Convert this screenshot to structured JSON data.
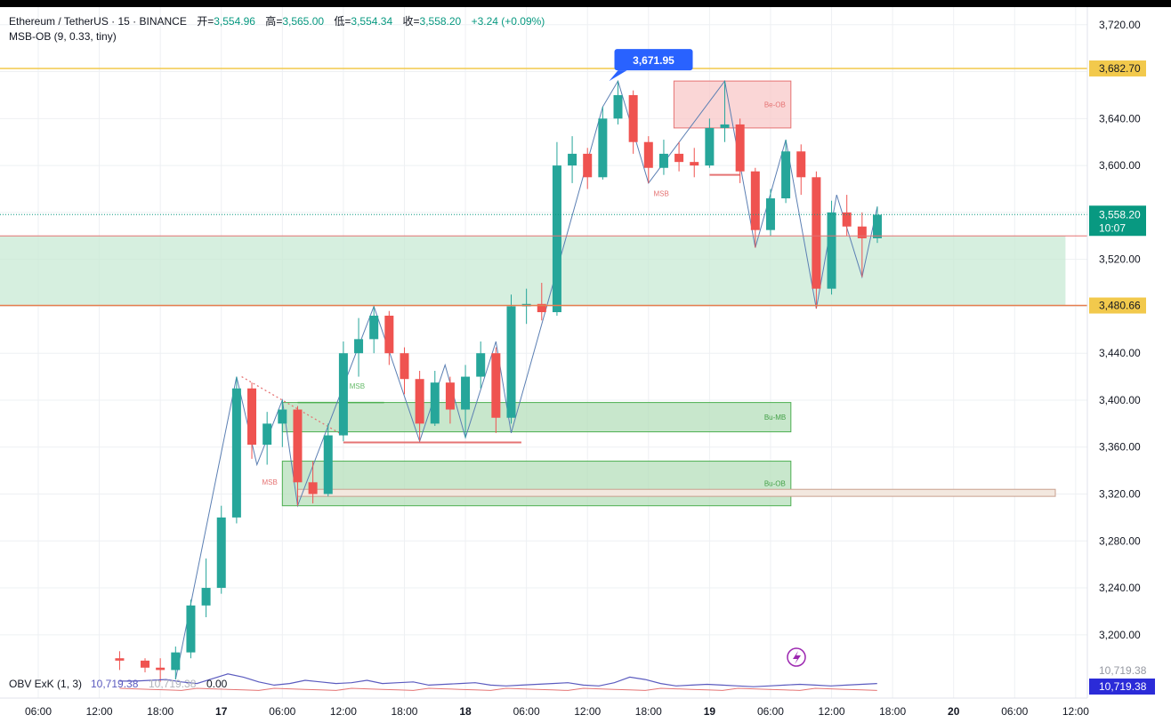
{
  "header": {
    "symbol": "Ethereum / TetherUS · 15 · BINANCE",
    "open_label": "开",
    "open": "3,554.96",
    "high_label": "高",
    "high": "3,565.00",
    "low_label": "低",
    "low": "3,554.34",
    "close_label": "收",
    "close": "3,558.20",
    "change": "+3.24 (+0.09%)",
    "indicator": "MSB-OB (9, 0.33, tiny)"
  },
  "obv": {
    "label": "OBV ExK (1, 3)",
    "v1": "10,719.38",
    "v2": "10,719.38",
    "v3": "0.00",
    "axis_value": "10,719.38",
    "axis_value_faded": "10,719.38"
  },
  "chart_data": {
    "type": "candlestick",
    "y_ticks": [
      3720,
      3680,
      3640,
      3600,
      3560,
      3520,
      3480,
      3440,
      3400,
      3360,
      3320,
      3280,
      3240,
      3200
    ],
    "y_tick_labels": [
      "3,720.00",
      "3,680.00",
      "3,640.00",
      "3,600.00",
      "3,560.00",
      "3,520.00",
      "3,480.00",
      "3,440.00",
      "3,400.00",
      "3,360.00",
      "3,320.00",
      "3,280.00",
      "3,240.00",
      "3,200.00"
    ],
    "x_tick_labels": [
      "06:00",
      "12:00",
      "18:00",
      "17",
      "06:00",
      "12:00",
      "18:00",
      "18",
      "06:00",
      "12:00",
      "18:00",
      "19",
      "06:00",
      "12:00",
      "18:00",
      "20",
      "06:00",
      "12:00"
    ],
    "x_tick_hours": [
      6,
      12,
      18,
      24,
      30,
      36,
      42,
      48,
      54,
      60,
      66,
      72,
      78,
      84,
      90,
      96,
      102,
      108
    ],
    "ylim": [
      3165,
      3735
    ],
    "price_levels": {
      "upper_line": {
        "value": 3682.7,
        "label": "3,682.70",
        "color": "#f2c94c"
      },
      "lower_line": {
        "value": 3480.66,
        "label": "3,480.66",
        "color": "#f2c94c"
      },
      "last_price": {
        "value": 3558.2,
        "label": "3,558.20",
        "countdown": "10:07",
        "color": "#089981"
      },
      "high_callout": {
        "value": 3671.95,
        "label": "3,671.95",
        "hour": 66.5
      }
    },
    "zones": [
      {
        "name": "support-zone",
        "y1": 3480.66,
        "y2": 3540,
        "h1": 0,
        "h2": 107,
        "fill": "#c8ead4",
        "label": ""
      },
      {
        "name": "bear-ob",
        "y1": 3632,
        "y2": 3672,
        "h1": 68.5,
        "h2": 80,
        "fill": "#f8c8c8",
        "label": "Be-OB"
      },
      {
        "name": "bull-mb",
        "y1": 3373,
        "y2": 3398,
        "h1": 30,
        "h2": 80,
        "fill": "#b5dfbb",
        "label": "Bu-MB"
      },
      {
        "name": "bull-ob",
        "y1": 3310,
        "y2": 3348,
        "h1": 30,
        "h2": 80,
        "fill": "#b5dfbb",
        "label": "Bu-OB"
      }
    ],
    "msb_labels": [
      {
        "text": "MSB",
        "value": 3328,
        "hour": 28,
        "color": "#e57373"
      },
      {
        "text": "MSB",
        "value": 3410,
        "hour": 36.6,
        "color": "#66bb6a"
      },
      {
        "text": "MSB",
        "value": 3574,
        "hour": 66.5,
        "color": "#e57373"
      }
    ],
    "ohlc": [
      {
        "t": 14.0,
        "o": 3180,
        "h": 3186,
        "l": 3170,
        "c": 3178
      },
      {
        "t": 16.5,
        "o": 3178,
        "h": 3180,
        "l": 3168,
        "c": 3172
      },
      {
        "t": 18.0,
        "o": 3172,
        "h": 3180,
        "l": 3160,
        "c": 3170
      },
      {
        "t": 19.5,
        "o": 3170,
        "h": 3190,
        "l": 3162,
        "c": 3185
      },
      {
        "t": 21.0,
        "o": 3185,
        "h": 3230,
        "l": 3180,
        "c": 3225
      },
      {
        "t": 22.5,
        "o": 3225,
        "h": 3265,
        "l": 3215,
        "c": 3240
      },
      {
        "t": 24.0,
        "o": 3240,
        "h": 3310,
        "l": 3235,
        "c": 3300
      },
      {
        "t": 25.5,
        "o": 3300,
        "h": 3420,
        "l": 3295,
        "c": 3410
      },
      {
        "t": 27.0,
        "o": 3410,
        "h": 3415,
        "l": 3350,
        "c": 3362
      },
      {
        "t": 28.5,
        "o": 3362,
        "h": 3390,
        "l": 3345,
        "c": 3380
      },
      {
        "t": 30.0,
        "o": 3380,
        "h": 3400,
        "l": 3360,
        "c": 3392
      },
      {
        "t": 31.5,
        "o": 3392,
        "h": 3395,
        "l": 3310,
        "c": 3330
      },
      {
        "t": 33.0,
        "o": 3330,
        "h": 3348,
        "l": 3312,
        "c": 3320
      },
      {
        "t": 34.5,
        "o": 3320,
        "h": 3380,
        "l": 3318,
        "c": 3370
      },
      {
        "t": 36.0,
        "o": 3370,
        "h": 3450,
        "l": 3365,
        "c": 3440
      },
      {
        "t": 37.5,
        "o": 3440,
        "h": 3470,
        "l": 3420,
        "c": 3452
      },
      {
        "t": 39.0,
        "o": 3452,
        "h": 3480,
        "l": 3440,
        "c": 3472
      },
      {
        "t": 40.5,
        "o": 3472,
        "h": 3476,
        "l": 3430,
        "c": 3440
      },
      {
        "t": 42.0,
        "o": 3440,
        "h": 3445,
        "l": 3405,
        "c": 3418
      },
      {
        "t": 43.5,
        "o": 3418,
        "h": 3425,
        "l": 3365,
        "c": 3380
      },
      {
        "t": 45.0,
        "o": 3380,
        "h": 3425,
        "l": 3378,
        "c": 3415
      },
      {
        "t": 46.5,
        "o": 3415,
        "h": 3420,
        "l": 3380,
        "c": 3392
      },
      {
        "t": 48.0,
        "o": 3392,
        "h": 3430,
        "l": 3368,
        "c": 3420
      },
      {
        "t": 49.5,
        "o": 3420,
        "h": 3450,
        "l": 3410,
        "c": 3440
      },
      {
        "t": 51.0,
        "o": 3440,
        "h": 3445,
        "l": 3372,
        "c": 3385
      },
      {
        "t": 52.5,
        "o": 3385,
        "h": 3490,
        "l": 3380,
        "c": 3480
      },
      {
        "t": 54.0,
        "o": 3480,
        "h": 3495,
        "l": 3465,
        "c": 3482
      },
      {
        "t": 55.5,
        "o": 3482,
        "h": 3500,
        "l": 3468,
        "c": 3475
      },
      {
        "t": 57.0,
        "o": 3475,
        "h": 3620,
        "l": 3472,
        "c": 3600
      },
      {
        "t": 58.5,
        "o": 3600,
        "h": 3625,
        "l": 3585,
        "c": 3610
      },
      {
        "t": 60.0,
        "o": 3610,
        "h": 3615,
        "l": 3580,
        "c": 3590
      },
      {
        "t": 61.5,
        "o": 3590,
        "h": 3650,
        "l": 3588,
        "c": 3640
      },
      {
        "t": 63.0,
        "o": 3640,
        "h": 3672,
        "l": 3635,
        "c": 3660
      },
      {
        "t": 64.5,
        "o": 3660,
        "h": 3664,
        "l": 3610,
        "c": 3620
      },
      {
        "t": 66.0,
        "o": 3620,
        "h": 3625,
        "l": 3585,
        "c": 3598
      },
      {
        "t": 67.5,
        "o": 3598,
        "h": 3622,
        "l": 3592,
        "c": 3610
      },
      {
        "t": 69.0,
        "o": 3610,
        "h": 3620,
        "l": 3595,
        "c": 3603
      },
      {
        "t": 70.5,
        "o": 3603,
        "h": 3615,
        "l": 3590,
        "c": 3600
      },
      {
        "t": 72.0,
        "o": 3600,
        "h": 3640,
        "l": 3598,
        "c": 3632
      },
      {
        "t": 73.5,
        "o": 3632,
        "h": 3672,
        "l": 3620,
        "c": 3635
      },
      {
        "t": 75.0,
        "o": 3635,
        "h": 3640,
        "l": 3585,
        "c": 3595
      },
      {
        "t": 76.5,
        "o": 3595,
        "h": 3598,
        "l": 3530,
        "c": 3545
      },
      {
        "t": 78.0,
        "o": 3545,
        "h": 3580,
        "l": 3540,
        "c": 3572
      },
      {
        "t": 79.5,
        "o": 3572,
        "h": 3622,
        "l": 3568,
        "c": 3612
      },
      {
        "t": 81.0,
        "o": 3612,
        "h": 3618,
        "l": 3575,
        "c": 3590
      },
      {
        "t": 82.5,
        "o": 3590,
        "h": 3595,
        "l": 3478,
        "c": 3495
      },
      {
        "t": 84.0,
        "o": 3495,
        "h": 3570,
        "l": 3490,
        "c": 3560
      },
      {
        "t": 85.5,
        "o": 3560,
        "h": 3575,
        "l": 3540,
        "c": 3548
      },
      {
        "t": 87.0,
        "o": 3548,
        "h": 3560,
        "l": 3505,
        "c": 3538
      },
      {
        "t": 88.5,
        "o": 3538,
        "h": 3565,
        "l": 3534,
        "c": 3558
      }
    ],
    "obv_series": [
      0.45,
      0.45,
      0.5,
      0.55,
      0.4,
      0.3,
      0.6,
      0.9,
      0.7,
      0.4,
      0.2,
      0.3,
      0.5,
      0.4,
      0.3,
      0.35,
      0.5,
      0.3,
      0.35,
      0.4,
      0.2,
      0.25,
      0.3,
      0.35,
      0.2,
      0.15,
      0.2,
      0.25,
      0.3,
      0.35,
      0.2,
      0.15,
      0.35,
      0.7,
      0.55,
      0.3,
      0.15,
      0.2,
      0.25,
      0.2,
      0.15,
      0.1,
      0.15,
      0.2,
      0.25,
      0.2,
      0.15,
      0.2,
      0.25,
      0.3
    ]
  },
  "colors": {
    "up": "#26a69a",
    "down": "#ef5350",
    "grid": "#eef0f3",
    "zigzag": "#5b7fb3",
    "obv_line": "#5b5bbf",
    "axis_tag_obv": "#2b2bd8",
    "lightning": "#9c27b0"
  },
  "icons": {
    "lightning": "lightning-icon"
  }
}
